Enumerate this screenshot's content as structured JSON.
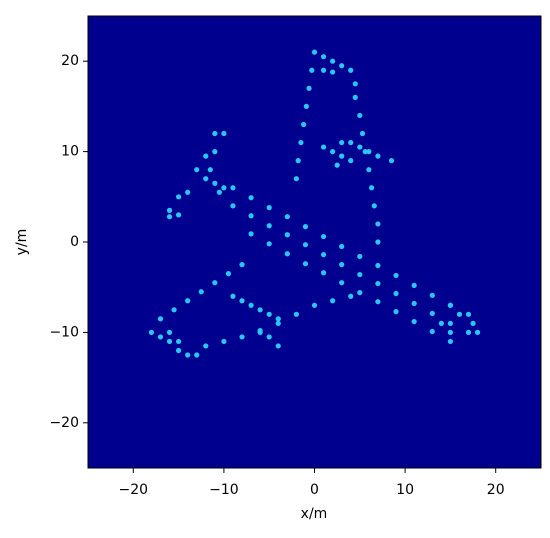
{
  "chart_data": {
    "type": "scatter",
    "xlabel": "x/m",
    "ylabel": "y/m",
    "xlim": [
      -25,
      25
    ],
    "ylim": [
      -25,
      25
    ],
    "xticks": [
      {
        "value": -20,
        "label": "−20"
      },
      {
        "value": -10,
        "label": "−10"
      },
      0,
      10,
      20
    ],
    "yticks": [
      {
        "value": -20,
        "label": "−20"
      },
      {
        "value": -10,
        "label": "−10"
      },
      0,
      10,
      20
    ],
    "background": "#00008f",
    "color": "#28c8ff",
    "x": [
      -9,
      -7,
      -5,
      -3,
      -1,
      1,
      3,
      5,
      7,
      9,
      11,
      13,
      15,
      17,
      -9,
      -7,
      -5,
      -3,
      -1,
      1,
      3,
      5,
      7,
      9,
      11,
      13,
      15,
      17,
      -7,
      -5,
      -3,
      -1,
      1,
      3,
      5,
      7,
      9,
      11,
      13,
      15,
      -12,
      -11,
      -10,
      -10.5,
      0,
      -0.3,
      -0.6,
      -0.9,
      -1.2,
      -1.5,
      -1.8,
      -2,
      1,
      2,
      3,
      4,
      4.5,
      1,
      2,
      4.5,
      5,
      5.3,
      5.6,
      6,
      6.3,
      6.6,
      7,
      7,
      3,
      4,
      5,
      6,
      7,
      8.5,
      1,
      2,
      3,
      4,
      2.5,
      -11,
      -10,
      -11,
      -12,
      -11.5,
      -13,
      -14,
      -15,
      -16,
      -15,
      -16,
      -8,
      -9.5,
      -11,
      -12.5,
      -14,
      -15.5,
      -17,
      -18,
      -17,
      -16,
      -16,
      -15,
      -15,
      -14,
      -13,
      -12,
      -10,
      -8,
      -6,
      -4,
      -2,
      0,
      2,
      4,
      -9,
      -8,
      -7,
      -6,
      -5,
      -4,
      -6,
      -5,
      -4,
      18,
      17.5,
      16,
      15,
      14,
      15
    ],
    "y": [
      6,
      4.9,
      3.8,
      2.8,
      1.7,
      0.6,
      -0.5,
      -1.6,
      -2.6,
      -3.7,
      -4.8,
      -5.9,
      -7,
      -8,
      4,
      2.9,
      1.8,
      0.8,
      -0.3,
      -1.4,
      -2.5,
      -3.6,
      -4.6,
      -5.7,
      -6.8,
      -7.9,
      -9,
      -10,
      0.9,
      -0.2,
      -1.3,
      -2.4,
      -3.4,
      -4.5,
      -5.6,
      -6.6,
      -7.7,
      -8.8,
      -9.9,
      -11,
      7,
      6.5,
      6,
      5.5,
      21,
      19,
      17,
      15,
      13,
      11,
      9,
      7,
      20.5,
      20,
      19.5,
      19,
      17.5,
      19,
      18.8,
      16,
      14,
      12,
      10,
      8,
      6,
      4,
      2,
      0,
      11,
      11,
      10.5,
      10,
      9.5,
      9,
      10.5,
      10,
      9.5,
      9,
      8.5,
      12,
      12,
      10,
      9.5,
      8,
      8,
      5.5,
      5,
      3.5,
      3,
      2.8,
      -2.5,
      -3.5,
      -4.5,
      -5.5,
      -6.5,
      -7.5,
      -8.5,
      -10,
      -10.5,
      -10,
      -11,
      -11,
      -12,
      -12.5,
      -12.5,
      -11.5,
      -11,
      -10.5,
      -9.8,
      -9,
      -8,
      -7,
      -6.5,
      -6,
      -6,
      -6.5,
      -7,
      -7.5,
      -8,
      -8.5,
      -10,
      -10.5,
      -11.5,
      -10,
      -9,
      -8,
      -7,
      -9,
      -10
    ]
  }
}
